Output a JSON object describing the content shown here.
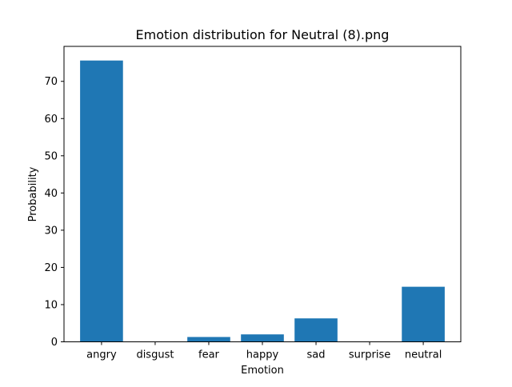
{
  "chart_data": {
    "type": "bar",
    "title": "Emotion distribution for Neutral (8).png",
    "xlabel": "Emotion",
    "ylabel": "Probability",
    "categories": [
      "angry",
      "disgust",
      "fear",
      "happy",
      "sad",
      "surprise",
      "neutral"
    ],
    "values": [
      75.6,
      0.0,
      1.3,
      2.0,
      6.3,
      0.0,
      14.8
    ],
    "ylim": [
      0,
      79.4
    ],
    "yticks": [
      0,
      10,
      20,
      30,
      40,
      50,
      60,
      70
    ],
    "grid": false,
    "bar_color": "#1f77b4"
  }
}
